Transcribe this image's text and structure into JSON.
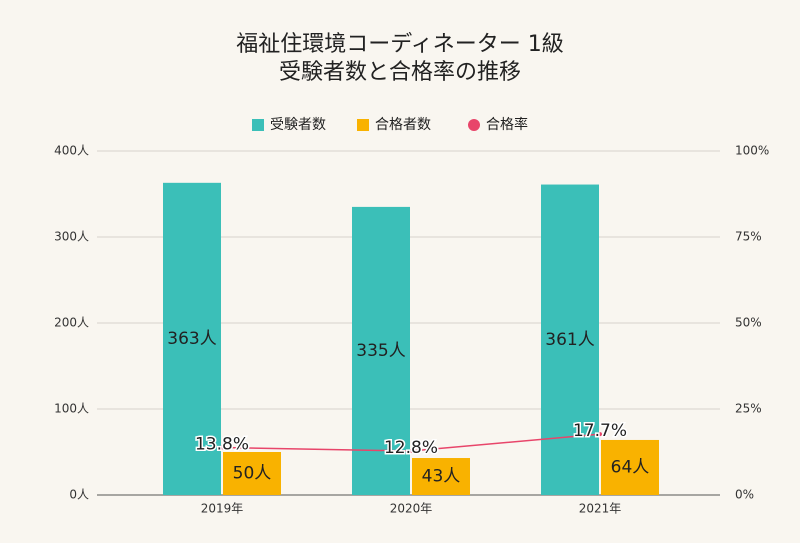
{
  "chart_data": {
    "type": "bar-line",
    "title": "福祉住環境コーディネーター 1級",
    "subtitle": "受験者数と合格率の推移",
    "categories": [
      "2019年",
      "2020年",
      "2021年"
    ],
    "series": [
      {
        "name": "受験者数",
        "type": "bar",
        "color": "#3bbfb8",
        "values": [
          363,
          335,
          361
        ],
        "value_labels": [
          "363人",
          "335人",
          "361人"
        ]
      },
      {
        "name": "合格者数",
        "type": "bar",
        "color": "#f9b200",
        "values": [
          50,
          43,
          64
        ],
        "value_labels": [
          "50人",
          "43人",
          "64人"
        ]
      },
      {
        "name": "合格率",
        "type": "line",
        "axis": "y2",
        "color": "#e8456a",
        "values": [
          13.8,
          12.8,
          17.7
        ],
        "value_labels": [
          "13.8%",
          "12.8%",
          "17.7%"
        ]
      }
    ],
    "ylim": [
      0,
      400
    ],
    "yticks": [
      {
        "value": 0,
        "label": "0人"
      },
      {
        "value": 100,
        "label": "100人"
      },
      {
        "value": 200,
        "label": "200人"
      },
      {
        "value": 300,
        "label": "300人"
      },
      {
        "value": 400,
        "label": "400人"
      }
    ],
    "y2lim": [
      0,
      100
    ],
    "y2ticks": [
      {
        "value": 0,
        "label": "0%"
      },
      {
        "value": 25,
        "label": "25%"
      },
      {
        "value": 50,
        "label": "50%"
      },
      {
        "value": 75,
        "label": "75%"
      },
      {
        "value": 100,
        "label": "100%"
      }
    ],
    "grid": true,
    "legend": "top"
  }
}
